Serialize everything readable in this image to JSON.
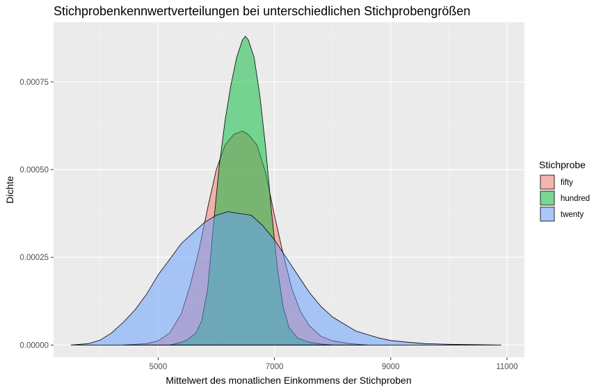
{
  "chart_data": {
    "type": "area",
    "title": "Stichprobenkennwertverteilungen bei unterschiedlichen Stichprobengrößen",
    "xlabel": "Mittelwert des monatlichen Einkommens der Stichproben",
    "ylabel": "Dichte",
    "xlim": [
      3200,
      11300
    ],
    "ylim": [
      -3.5e-05,
      0.00092
    ],
    "x_ticks": [
      5000,
      7000,
      9000,
      11000
    ],
    "x_tick_labels": [
      "5000",
      "7000",
      "9000",
      "11000"
    ],
    "y_ticks": [
      0,
      0.00025,
      0.0005,
      0.00075
    ],
    "y_tick_labels": [
      "0.00000",
      "0.00025",
      "0.00050",
      "0.00075"
    ],
    "grid": true,
    "legend": {
      "title": "Stichprobe",
      "position": "right"
    },
    "series": [
      {
        "name": "fifty",
        "color": "#F8766D",
        "points": [
          [
            4400,
            0
          ],
          [
            4800,
            4e-06
          ],
          [
            5000,
            1.2e-05
          ],
          [
            5200,
            3.5e-05
          ],
          [
            5400,
            9e-05
          ],
          [
            5550,
            0.00017
          ],
          [
            5700,
            0.00027
          ],
          [
            5850,
            0.00039
          ],
          [
            6000,
            0.0005
          ],
          [
            6150,
            0.00057
          ],
          [
            6300,
            0.0006
          ],
          [
            6450,
            0.00061
          ],
          [
            6550,
            0.0006
          ],
          [
            6700,
            0.00057
          ],
          [
            6850,
            0.00049
          ],
          [
            7000,
            0.00037
          ],
          [
            7150,
            0.00026
          ],
          [
            7300,
            0.00016
          ],
          [
            7450,
            9.5e-05
          ],
          [
            7600,
            5.5e-05
          ],
          [
            7800,
            2.5e-05
          ],
          [
            8000,
            1.2e-05
          ],
          [
            8300,
            4e-06
          ],
          [
            8600,
            0
          ]
        ]
      },
      {
        "name": "hundred",
        "color": "#00BA38",
        "points": [
          [
            5200,
            0
          ],
          [
            5400,
            8e-06
          ],
          [
            5500,
            1.5e-05
          ],
          [
            5650,
            3.5e-05
          ],
          [
            5750,
            7e-05
          ],
          [
            5850,
            0.00016
          ],
          [
            5950,
            0.00034
          ],
          [
            6050,
            0.00051
          ],
          [
            6150,
            0.00064
          ],
          [
            6250,
            0.00074
          ],
          [
            6350,
            0.00082
          ],
          [
            6450,
            0.00087
          ],
          [
            6500,
            0.00088
          ],
          [
            6550,
            0.00087
          ],
          [
            6650,
            0.00082
          ],
          [
            6750,
            0.00071
          ],
          [
            6850,
            0.00056
          ],
          [
            6950,
            0.00038
          ],
          [
            7050,
            0.00022
          ],
          [
            7150,
            0.00011
          ],
          [
            7250,
            5e-05
          ],
          [
            7400,
            2e-05
          ],
          [
            7600,
            8e-06
          ],
          [
            7800,
            3e-06
          ],
          [
            8000,
            0
          ]
        ]
      },
      {
        "name": "twenty",
        "color": "#619CFF",
        "points": [
          [
            3500,
            0
          ],
          [
            3800,
            4e-06
          ],
          [
            4000,
            1.4e-05
          ],
          [
            4200,
            3.5e-05
          ],
          [
            4400,
            6.5e-05
          ],
          [
            4600,
            0.0001
          ],
          [
            4800,
            0.000145
          ],
          [
            5000,
            0.0002
          ],
          [
            5200,
            0.000245
          ],
          [
            5400,
            0.00029
          ],
          [
            5600,
            0.00032
          ],
          [
            5800,
            0.00035
          ],
          [
            6000,
            0.00037
          ],
          [
            6200,
            0.00038
          ],
          [
            6400,
            0.000375
          ],
          [
            6600,
            0.00037
          ],
          [
            6800,
            0.00034
          ],
          [
            7000,
            0.0003
          ],
          [
            7200,
            0.00025
          ],
          [
            7400,
            0.0002
          ],
          [
            7600,
            0.00015
          ],
          [
            7800,
            0.00011
          ],
          [
            8000,
            8e-05
          ],
          [
            8200,
            6e-05
          ],
          [
            8400,
            4e-05
          ],
          [
            8600,
            3e-05
          ],
          [
            8800,
            2e-05
          ],
          [
            9000,
            1.3e-05
          ],
          [
            9300,
            8e-06
          ],
          [
            9600,
            4e-06
          ],
          [
            10000,
            2e-06
          ],
          [
            10500,
            1e-06
          ],
          [
            10900,
            0
          ]
        ]
      }
    ]
  }
}
